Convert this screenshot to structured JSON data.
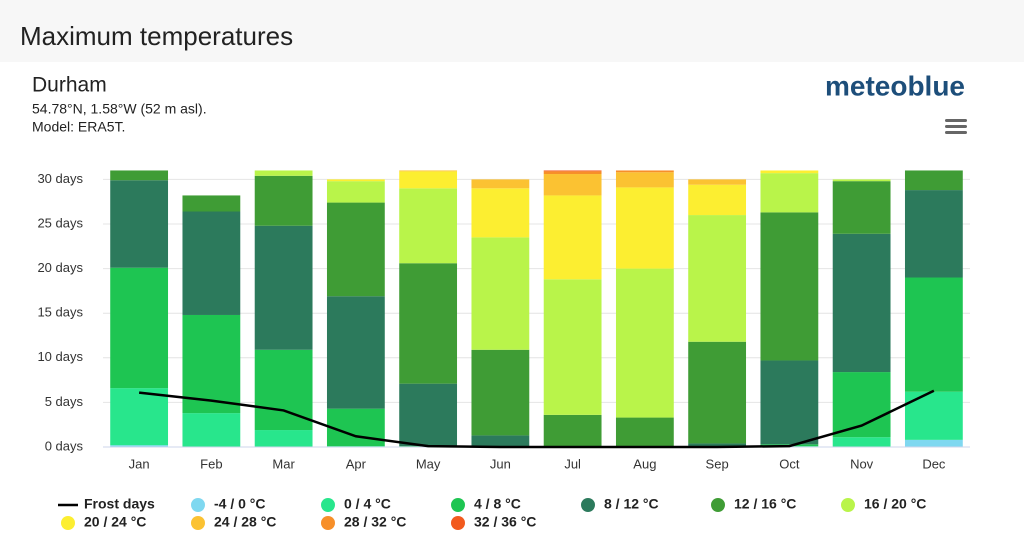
{
  "page_title": "Maximum temperatures",
  "brand": "meteoblue",
  "chart_data": {
    "type": "stacked_bar",
    "title": "Durham",
    "subtitle": "54.78°N, 1.58°W (52 m asl).",
    "model": "Model: ERA5T.",
    "categories": [
      "Jan",
      "Feb",
      "Mar",
      "Apr",
      "May",
      "Jun",
      "Jul",
      "Aug",
      "Sep",
      "Oct",
      "Nov",
      "Dec"
    ],
    "ylim": [
      0,
      31.5
    ],
    "yticks": [
      {
        "value": 0,
        "label": "0 days"
      },
      {
        "value": 5,
        "label": "5 days"
      },
      {
        "value": 10,
        "label": "10 days"
      },
      {
        "value": 15,
        "label": "15 days"
      },
      {
        "value": 20,
        "label": "20 days"
      },
      {
        "value": 25,
        "label": "25 days"
      },
      {
        "value": 30,
        "label": "30 days"
      }
    ],
    "grid": true,
    "line_series": {
      "name": "Frost days",
      "color": "#000000",
      "values": [
        6.1,
        5.2,
        4.1,
        1.2,
        0.1,
        0,
        0,
        0,
        0,
        0.1,
        2.4,
        6.3
      ]
    },
    "series": [
      {
        "name": "-4 / 0 °C",
        "color": "#7fd8f0",
        "values": [
          0.2,
          0,
          0,
          0,
          0,
          0,
          0,
          0,
          0,
          0,
          0,
          0.8
        ]
      },
      {
        "name": "0 / 4 °C",
        "color": "#28e68c",
        "values": [
          6.4,
          3.8,
          1.9,
          0.1,
          0,
          0,
          0,
          0,
          0,
          0.1,
          1.1,
          5.4
        ]
      },
      {
        "name": "4 / 8 °C",
        "color": "#1ec552",
        "values": [
          13.5,
          11.0,
          9.0,
          4.2,
          0.1,
          0,
          0,
          0,
          0,
          0.2,
          7.3,
          12.8
        ]
      },
      {
        "name": "8 / 12 °C",
        "color": "#2c7a5c",
        "values": [
          9.8,
          11.6,
          13.9,
          12.6,
          7.0,
          1.3,
          0,
          0,
          0.4,
          9.4,
          15.5,
          9.8
        ]
      },
      {
        "name": "12 / 16 °C",
        "color": "#3f9c35",
        "values": [
          1.1,
          1.8,
          5.6,
          10.5,
          13.5,
          9.6,
          3.6,
          3.3,
          11.4,
          16.6,
          5.9,
          2.2
        ]
      },
      {
        "name": "16 / 20 °C",
        "color": "#b9f44a",
        "values": [
          0,
          0,
          0.6,
          2.4,
          8.4,
          12.6,
          15.2,
          16.7,
          14.2,
          4.4,
          0.2,
          0
        ]
      },
      {
        "name": "20 / 24 °C",
        "color": "#fcee31",
        "values": [
          0,
          0,
          0,
          0.2,
          1.9,
          5.5,
          9.4,
          9.1,
          3.4,
          0.3,
          0,
          0
        ]
      },
      {
        "name": "24 / 28 °C",
        "color": "#fbc232",
        "values": [
          0,
          0,
          0,
          0,
          0.1,
          1.0,
          2.4,
          1.7,
          0.6,
          0,
          0,
          0
        ]
      },
      {
        "name": "28 / 32 °C",
        "color": "#f78f29",
        "values": [
          0,
          0,
          0,
          0,
          0,
          0,
          0.3,
          0.2,
          0,
          0,
          0,
          0
        ]
      },
      {
        "name": "32 / 36 °C",
        "color": "#f25a1e",
        "values": [
          0,
          0,
          0,
          0,
          0,
          0,
          0.1,
          0,
          0,
          0,
          0,
          0
        ]
      }
    ]
  }
}
